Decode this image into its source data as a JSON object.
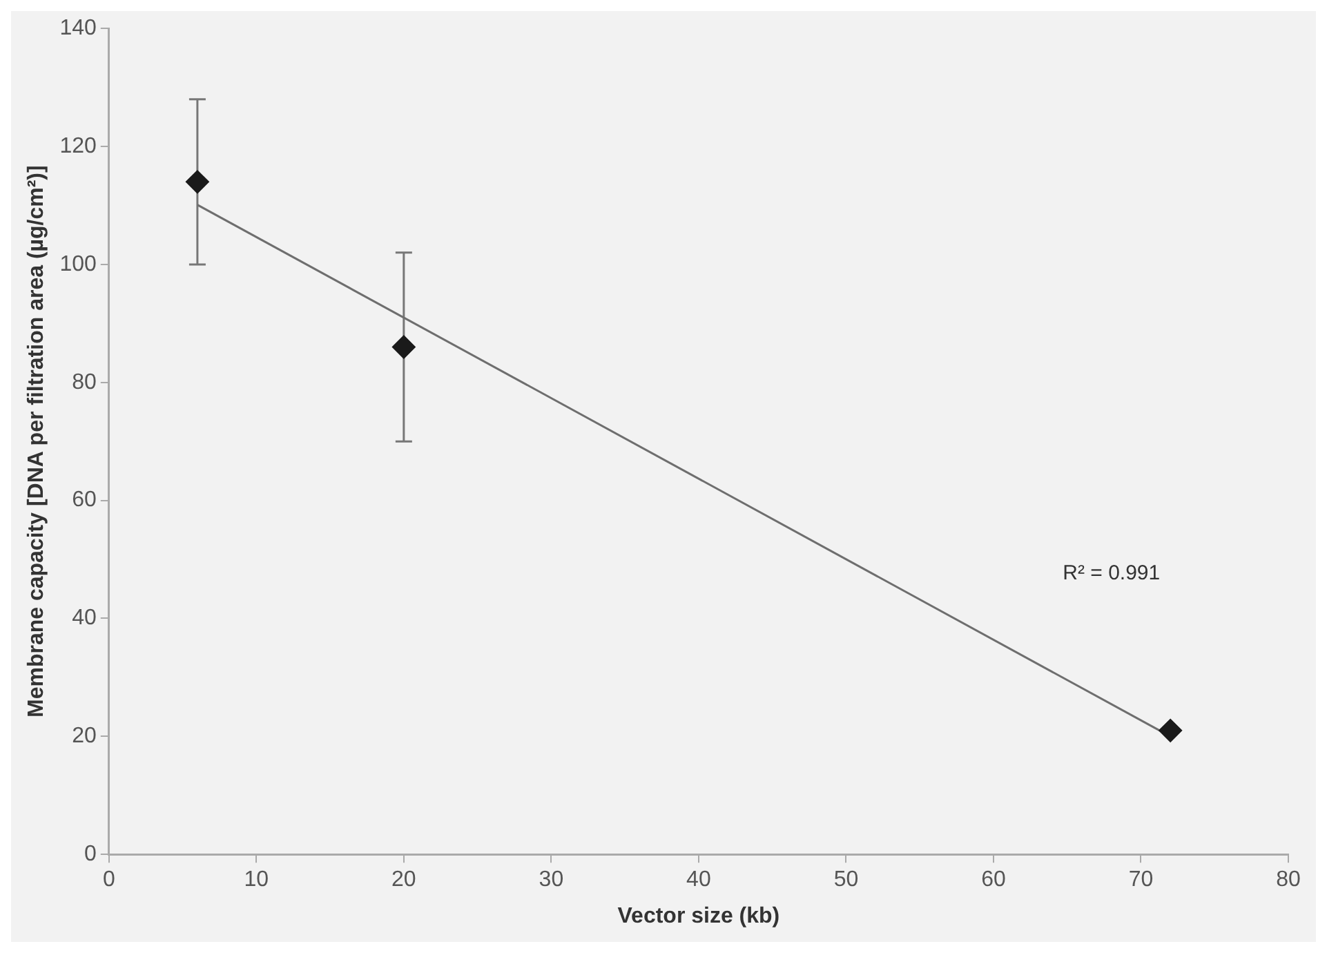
{
  "chart_data": {
    "type": "scatter",
    "xlabel": "Vector size (kb)",
    "ylabel": "Membrane capacity [DNA per filtration area (µg/cm²)]",
    "xlim": [
      0,
      80
    ],
    "xticks": [
      0,
      10,
      20,
      30,
      40,
      50,
      60,
      70,
      80
    ],
    "ylim": [
      0,
      140
    ],
    "yticks": [
      0,
      20,
      40,
      60,
      80,
      100,
      120,
      140
    ],
    "series": [
      {
        "marker": "diamond",
        "color": "#1a1a1a",
        "x": [
          6,
          20,
          72
        ],
        "values": [
          114,
          86,
          21
        ],
        "errors": [
          [
            100,
            128
          ],
          [
            70,
            102
          ],
          null
        ]
      },
      {
        "type": "line",
        "marker": "none",
        "color": "#6e6e6e",
        "x": [
          6,
          72
        ],
        "values": [
          110.1,
          20
        ]
      }
    ],
    "annotations": [
      "R² = 0.991"
    ]
  }
}
